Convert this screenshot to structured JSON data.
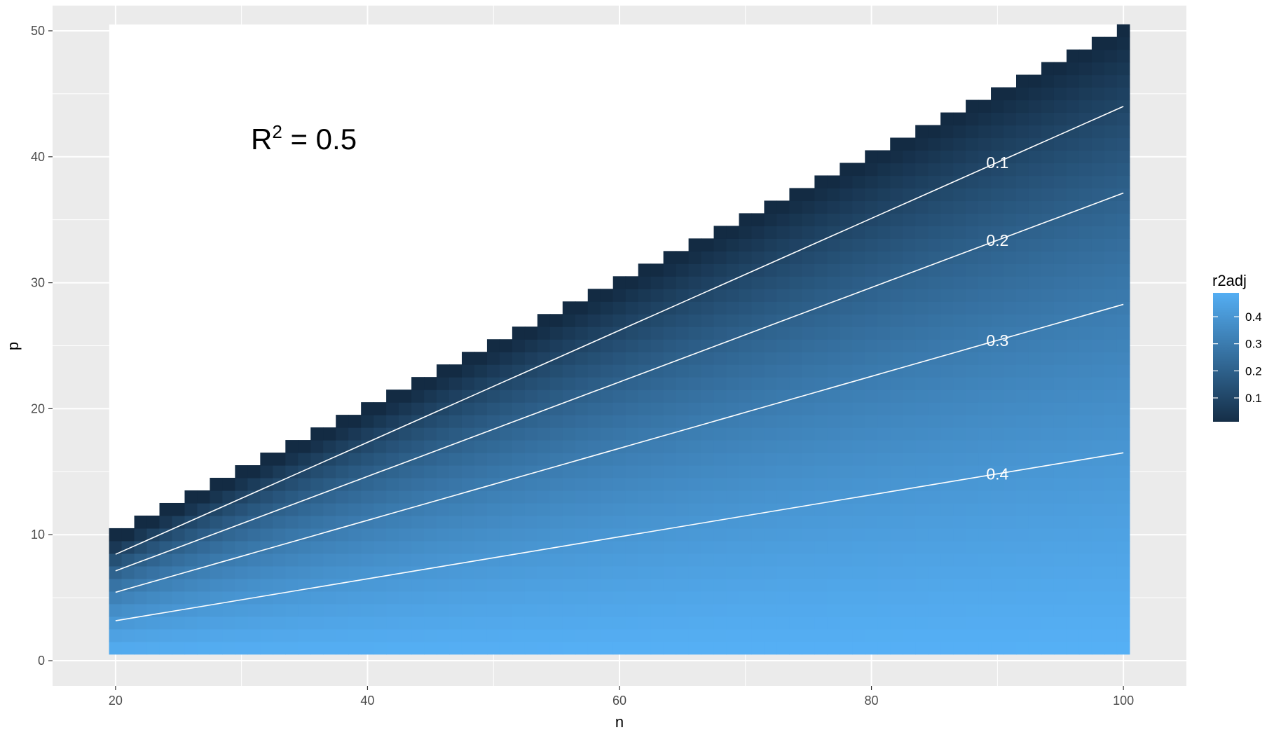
{
  "chart_data": {
    "type": "heatmap",
    "xlabel": "n",
    "ylabel": "p",
    "x_ticks": [
      20,
      40,
      60,
      80,
      100
    ],
    "y_ticks": [
      0,
      10,
      20,
      30,
      40,
      50
    ],
    "xlim": [
      15,
      105
    ],
    "ylim": [
      -2,
      52
    ],
    "grid": true,
    "annotation": {
      "base": "R",
      "sup": "2",
      "rest": " = 0.5"
    },
    "r2": 0.5,
    "n_range": [
      20,
      100
    ],
    "p_rule": "p from 1 to floor(n/2)",
    "value_formula": "r2adj = 1 - (1 - R2)(n - 1)/(n - p - 1)",
    "fill_name": "r2adj",
    "color_low": "#132B43",
    "color_high": "#56B1F7",
    "fill_range": [
      0,
      0.5
    ],
    "legend": {
      "title": "r2adj",
      "placement": "right",
      "ticks": [
        {
          "value": 0.1,
          "label": "0.1"
        },
        {
          "value": 0.2,
          "label": "0.2"
        },
        {
          "value": 0.3,
          "label": "0.3"
        },
        {
          "value": 0.4,
          "label": "0.4"
        }
      ]
    },
    "contours": [
      {
        "level": 0.1,
        "label": "0.1",
        "label_x": 90
      },
      {
        "level": 0.2,
        "label": "0.2",
        "label_x": 90
      },
      {
        "level": 0.3,
        "label": "0.3",
        "label_x": 90
      },
      {
        "level": 0.4,
        "label": "0.4",
        "label_x": 90
      }
    ]
  }
}
